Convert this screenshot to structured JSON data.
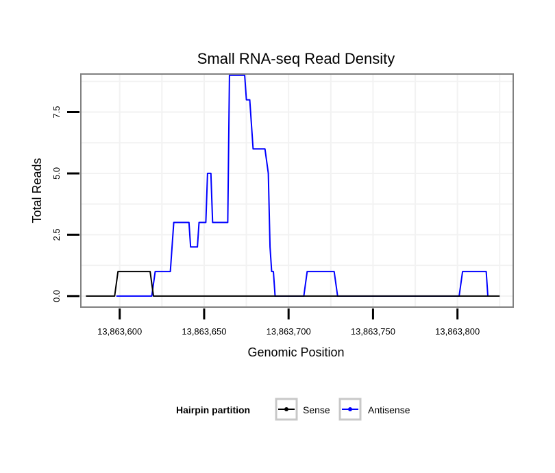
{
  "chart_data": {
    "type": "line",
    "title": "Small RNA-seq Read Density",
    "xlabel": "Genomic Position",
    "ylabel": "Total Reads",
    "xlim": [
      13863577,
      13863833
    ],
    "ylim": [
      -0.45,
      9.05
    ],
    "x_ticks": [
      13863600,
      13863650,
      13863700,
      13863750,
      13863800
    ],
    "x_tick_labels": [
      "13,863,600",
      "13,863,650",
      "13,863,700",
      "13,863,750",
      "13,863,800"
    ],
    "y_ticks": [
      0,
      2.5,
      5,
      7.5
    ],
    "y_tick_labels": [
      "0.0",
      "2.5",
      "5.0",
      "7.5"
    ],
    "grid": true,
    "legend": {
      "title": "Hairpin partition",
      "position": "bottom",
      "entries": [
        "Sense",
        "Antisense"
      ]
    },
    "series": [
      {
        "name": "Sense",
        "color": "#000000",
        "x": [
          13863580,
          13863597,
          13863599,
          13863618,
          13863620,
          13863825
        ],
        "y": [
          0,
          0,
          1,
          1,
          0,
          0
        ]
      },
      {
        "name": "Antisense",
        "color": "#0000ff",
        "x": [
          13863598,
          13863619,
          13863621,
          13863630,
          13863632,
          13863641,
          13863642,
          13863646,
          13863647,
          13863651,
          13863652,
          13863654,
          13863655,
          13863658,
          13863664,
          13863665,
          13863674,
          13863675,
          13863677,
          13863679,
          13863686,
          13863688,
          13863689,
          13863690,
          13863691,
          13863692,
          13863709,
          13863711,
          13863727,
          13863729,
          13863801,
          13863803,
          13863817,
          13863818
        ],
        "y": [
          0,
          0,
          1,
          1,
          3,
          3,
          2,
          2,
          3,
          3,
          5,
          5,
          3,
          3,
          3,
          9,
          9,
          8,
          8,
          6,
          6,
          5,
          2,
          1,
          1,
          0,
          0,
          1,
          1,
          0,
          0,
          1,
          1,
          0
        ]
      }
    ]
  }
}
